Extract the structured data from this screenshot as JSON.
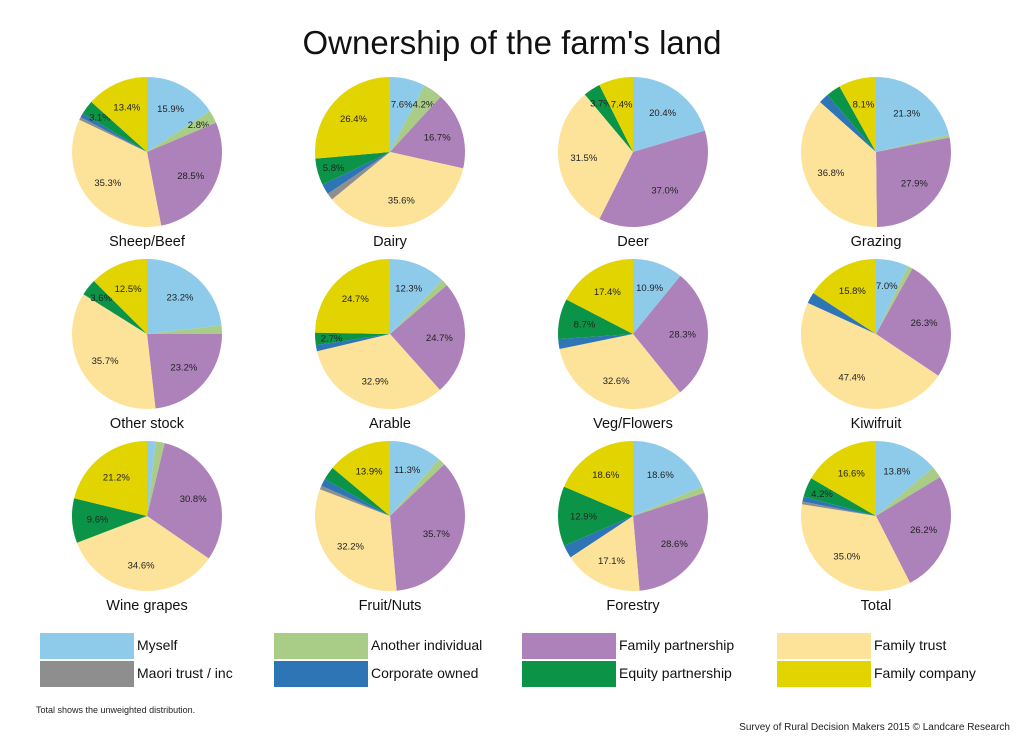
{
  "title": "Ownership of the farm's land",
  "footnote": "Total shows the unweighted distribution.",
  "credit": "Survey of Rural Decision Makers 2015 © Landcare Research",
  "legend": [
    {
      "name": "Myself",
      "color": "#8ecbeb"
    },
    {
      "name": "Another individual",
      "color": "#a9cc87"
    },
    {
      "name": "Family partnership",
      "color": "#ad82bb"
    },
    {
      "name": "Family trust",
      "color": "#fde39a"
    },
    {
      "name": "Maori trust / inc",
      "color": "#8e8e8e"
    },
    {
      "name": "Corporate owned",
      "color": "#2e75b6"
    },
    {
      "name": "Equity partnership",
      "color": "#0b9447"
    },
    {
      "name": "Family company",
      "color": "#e2d400"
    }
  ],
  "chart_data": [
    {
      "type": "pie",
      "title": "Sheep/Beef",
      "categories": [
        "Myself",
        "Another individual",
        "Family partnership",
        "Family trust",
        "Maori trust / inc",
        "Corporate owned",
        "Equity partnership",
        "Family company"
      ],
      "values": [
        15.9,
        2.8,
        28.5,
        35.3,
        0.6,
        0.9,
        3.1,
        13.4
      ],
      "labels": [
        "15.9%",
        "2.8%",
        "28.5%",
        "35.3%",
        "",
        "",
        "3.1%",
        "13.4%"
      ]
    },
    {
      "type": "pie",
      "title": "Dairy",
      "categories": [
        "Myself",
        "Another individual",
        "Family partnership",
        "Family trust",
        "Maori trust / inc",
        "Corporate owned",
        "Equity partnership",
        "Family company"
      ],
      "values": [
        7.6,
        4.2,
        16.7,
        35.6,
        1.5,
        2.2,
        5.8,
        26.4
      ],
      "labels": [
        "7.6%",
        "4.2%",
        "16.7%",
        "35.6%",
        "",
        "",
        "5.8%",
        "26.4%"
      ]
    },
    {
      "type": "pie",
      "title": "Deer",
      "categories": [
        "Myself",
        "Another individual",
        "Family partnership",
        "Family trust",
        "Maori trust / inc",
        "Corporate owned",
        "Equity partnership",
        "Family company"
      ],
      "values": [
        20.4,
        0,
        37.0,
        31.5,
        0,
        0,
        3.7,
        7.4
      ],
      "labels": [
        "20.4%",
        "",
        "37.0%",
        "31.5%",
        "",
        "",
        "3.7%",
        "7.4%"
      ]
    },
    {
      "type": "pie",
      "title": "Grazing",
      "categories": [
        "Myself",
        "Another individual",
        "Family partnership",
        "Family trust",
        "Maori trust / inc",
        "Corporate owned",
        "Equity partnership",
        "Family company"
      ],
      "values": [
        21.3,
        0.6,
        27.9,
        36.8,
        0,
        2.2,
        3.1,
        8.1
      ],
      "labels": [
        "21.3%",
        "",
        "27.9%",
        "36.8%",
        "",
        "",
        "",
        "8.1%"
      ]
    },
    {
      "type": "pie",
      "title": "Other stock",
      "categories": [
        "Myself",
        "Another individual",
        "Family partnership",
        "Family trust",
        "Maori trust / inc",
        "Corporate owned",
        "Equity partnership",
        "Family company"
      ],
      "values": [
        23.2,
        1.8,
        23.2,
        35.7,
        0,
        0,
        3.6,
        12.5
      ],
      "labels": [
        "23.2%",
        "",
        "23.2%",
        "35.7%",
        "",
        "",
        "3.6%",
        "12.5%"
      ]
    },
    {
      "type": "pie",
      "title": "Arable",
      "categories": [
        "Myself",
        "Another individual",
        "Family partnership",
        "Family trust",
        "Maori trust / inc",
        "Corporate owned",
        "Equity partnership",
        "Family company"
      ],
      "values": [
        12.3,
        1.4,
        24.7,
        32.9,
        0,
        1.3,
        2.7,
        24.7
      ],
      "labels": [
        "12.3%",
        "",
        "24.7%",
        "32.9%",
        "",
        "",
        "2.7%",
        "24.7%"
      ]
    },
    {
      "type": "pie",
      "title": "Veg/Flowers",
      "categories": [
        "Myself",
        "Another individual",
        "Family partnership",
        "Family trust",
        "Maori trust / inc",
        "Corporate owned",
        "Equity partnership",
        "Family company"
      ],
      "values": [
        10.9,
        0,
        28.3,
        32.6,
        0,
        2.1,
        8.7,
        17.4
      ],
      "labels": [
        "10.9%",
        "",
        "28.3%",
        "32.6%",
        "",
        "",
        "8.7%",
        "17.4%"
      ]
    },
    {
      "type": "pie",
      "title": "Kiwifruit",
      "categories": [
        "Myself",
        "Another individual",
        "Family partnership",
        "Family trust",
        "Maori trust / inc",
        "Corporate owned",
        "Equity partnership",
        "Family company"
      ],
      "values": [
        7.0,
        1.1,
        26.3,
        47.4,
        0,
        2.4,
        0,
        15.8
      ],
      "labels": [
        "7.0%",
        "",
        "26.3%",
        "47.4%",
        "",
        "",
        "",
        "15.8%"
      ]
    },
    {
      "type": "pie",
      "title": "Wine grapes",
      "categories": [
        "Myself",
        "Another individual",
        "Family partnership",
        "Family trust",
        "Maori trust / inc",
        "Corporate owned",
        "Equity partnership",
        "Family company"
      ],
      "values": [
        1.9,
        1.9,
        30.8,
        34.6,
        0,
        0,
        9.6,
        21.2
      ],
      "labels": [
        "",
        "",
        "30.8%",
        "34.6%",
        "",
        "",
        "9.6%",
        "21.2%"
      ]
    },
    {
      "type": "pie",
      "title": "Fruit/Nuts",
      "categories": [
        "Myself",
        "Another individual",
        "Family partnership",
        "Family trust",
        "Maori trust / inc",
        "Corporate owned",
        "Equity partnership",
        "Family company"
      ],
      "values": [
        11.3,
        1.6,
        35.7,
        32.2,
        0.8,
        1.6,
        2.9,
        13.9
      ],
      "labels": [
        "11.3%",
        "",
        "35.7%",
        "32.2%",
        "",
        "",
        "",
        "13.9%"
      ]
    },
    {
      "type": "pie",
      "title": "Forestry",
      "categories": [
        "Myself",
        "Another individual",
        "Family partnership",
        "Family trust",
        "Maori trust / inc",
        "Corporate owned",
        "Equity partnership",
        "Family company"
      ],
      "values": [
        18.6,
        1.4,
        28.6,
        17.1,
        0,
        2.8,
        12.9,
        18.6
      ],
      "labels": [
        "18.6%",
        "",
        "28.6%",
        "17.1%",
        "",
        "",
        "12.9%",
        "18.6%"
      ]
    },
    {
      "type": "pie",
      "title": "Total",
      "categories": [
        "Myself",
        "Another individual",
        "Family partnership",
        "Family trust",
        "Maori trust / inc",
        "Corporate owned",
        "Equity partnership",
        "Family company"
      ],
      "values": [
        13.8,
        2.5,
        26.2,
        35.0,
        0.6,
        1.1,
        4.2,
        16.6
      ],
      "labels": [
        "13.8%",
        "",
        "26.2%",
        "35.0%",
        "",
        "",
        "4.2%",
        "16.6%"
      ]
    }
  ]
}
